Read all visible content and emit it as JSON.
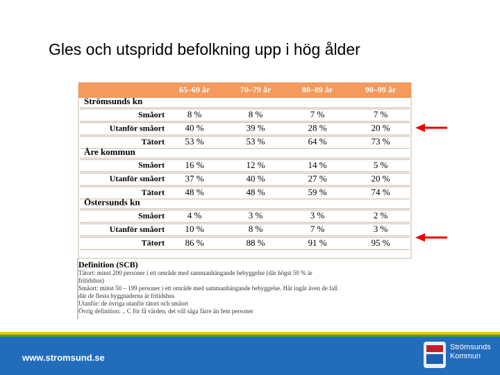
{
  "title": "Gles och utspridd befolkning upp i hög ålder",
  "table": {
    "columns": [
      "65–69 år",
      "70–79 år",
      "80–89 år",
      "90–99 år"
    ],
    "groups": [
      {
        "name": "Strömsunds kn",
        "rows": [
          {
            "label": "Småort",
            "values": [
              "8 %",
              "8 %",
              "7 %",
              "7 %"
            ]
          },
          {
            "label": "Utanför småort",
            "values": [
              "40 %",
              "39 %",
              "28 %",
              "20 %"
            ]
          },
          {
            "label": "Tätort",
            "values": [
              "53 %",
              "53 %",
              "64 %",
              "73 %"
            ]
          }
        ]
      },
      {
        "name": "Åre kommun",
        "rows": [
          {
            "label": "Småort",
            "values": [
              "16 %",
              "12 %",
              "14 %",
              "5 %"
            ]
          },
          {
            "label": "Utanför småort",
            "values": [
              "37 %",
              "40 %",
              "27 %",
              "20 %"
            ]
          },
          {
            "label": "Tätort",
            "values": [
              "48 %",
              "48 %",
              "59 %",
              "74 %"
            ]
          }
        ]
      },
      {
        "name": "Östersunds kn",
        "rows": [
          {
            "label": "Småort",
            "values": [
              "4 %",
              "3 %",
              "3 %",
              "2 %"
            ]
          },
          {
            "label": "Utanför småort",
            "values": [
              "10 %",
              "8 %",
              "7 %",
              "3 %"
            ]
          },
          {
            "label": "Tätort",
            "values": [
              "86 %",
              "88 %",
              "91 %",
              "95 %"
            ]
          }
        ]
      }
    ]
  },
  "definition": {
    "heading": "Definition (SCB)",
    "lines": [
      "Tätort: minst 200 personer i ett område med sammanhängande bebyggelse (där högst 50 % är",
      "fritidshus)",
      "Småort: minst 50 – 199 personer i ett område med sammanhängande bebyggelse. Här ingår även de fall",
      "där de flesta byggnaderna är fritidshus",
      "Utanför: de övriga utanför tätort och småort",
      "Övrig definition: .. C för få värden, det vill säga färre än fem personer"
    ]
  },
  "footer": {
    "url": "www.stromsund.se",
    "logo": [
      "Strömsunds",
      "Kommun"
    ]
  }
}
